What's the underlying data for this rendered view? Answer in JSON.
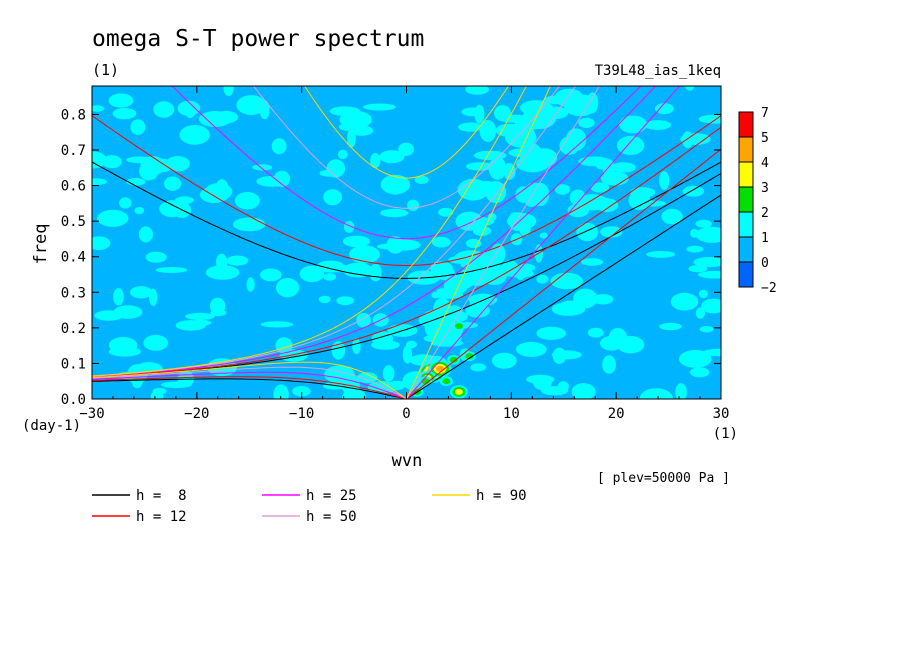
{
  "chart_data": {
    "type": "heatmap",
    "title": "omega S-T power spectrum",
    "units_label": "(1)",
    "run_label": "T39L48_ias_1keq",
    "xlabel": "wvn",
    "ylabel": "freq",
    "x_unit": "(1)",
    "y_unit": "(day-1)",
    "level_label": "[ plev=50000 Pa ]",
    "xlim": [
      -30,
      30
    ],
    "ylim": [
      0,
      0.88
    ],
    "xticks": [
      -30,
      -20,
      -10,
      0,
      10,
      20,
      30
    ],
    "yticks": [
      0.0,
      0.1,
      0.2,
      0.3,
      0.4,
      0.5,
      0.6,
      0.7,
      0.8
    ],
    "xtick_labels": [
      "−30",
      "−20",
      "−10",
      "0",
      "10",
      "20",
      "30"
    ],
    "ytick_labels": [
      "0.0",
      "0.1",
      "0.2",
      "0.3",
      "0.4",
      "0.5",
      "0.6",
      "0.7",
      "0.8"
    ],
    "colorbar": {
      "labels": [
        "7",
        "5",
        "4",
        "3",
        "2",
        "1",
        "0",
        "−2"
      ],
      "colors": [
        "#ff0000",
        "#ffa500",
        "#ffff00",
        "#00e000",
        "#00ffff",
        "#00b4ff",
        "#0064ff"
      ]
    },
    "background_level_color": "#00b4ff",
    "patch_colors": {
      "1": "#00ffff",
      "2": "#00e000",
      "3": "#ffff00",
      "4": "#ffa500",
      "5": "#ff0000"
    },
    "hotspots": [
      {
        "x": 2.5,
        "y": 0.075,
        "level": 5
      },
      {
        "x": 3.2,
        "y": 0.085,
        "level": 4
      },
      {
        "x": 2.0,
        "y": 0.06,
        "level": 3
      },
      {
        "x": 1.8,
        "y": 0.05,
        "level": 2
      },
      {
        "x": 3.8,
        "y": 0.05,
        "level": 2
      },
      {
        "x": 5.0,
        "y": 0.205,
        "level": 2
      },
      {
        "x": 6.0,
        "y": 0.12,
        "level": 2
      },
      {
        "x": 5.0,
        "y": 0.02,
        "level": 3
      },
      {
        "x": 1.0,
        "y": 0.02,
        "level": 2
      },
      {
        "x": 4.5,
        "y": 0.11,
        "level": 2
      }
    ],
    "dispersion_curves": [
      {
        "h": 8,
        "color": "#000000"
      },
      {
        "h": 12,
        "color": "#ff0000"
      },
      {
        "h": 25,
        "color": "#ff00ff"
      },
      {
        "h": 50,
        "color": "#dda0dd"
      },
      {
        "h": 90,
        "color": "#ffd700"
      }
    ],
    "legend": [
      {
        "label": "h =  8",
        "color": "#000000"
      },
      {
        "label": "h = 12",
        "color": "#ff0000"
      },
      {
        "label": "h = 25",
        "color": "#ff00ff"
      },
      {
        "label": "h = 50",
        "color": "#dda0dd"
      },
      {
        "label": "h = 90",
        "color": "#ffd700"
      }
    ]
  }
}
